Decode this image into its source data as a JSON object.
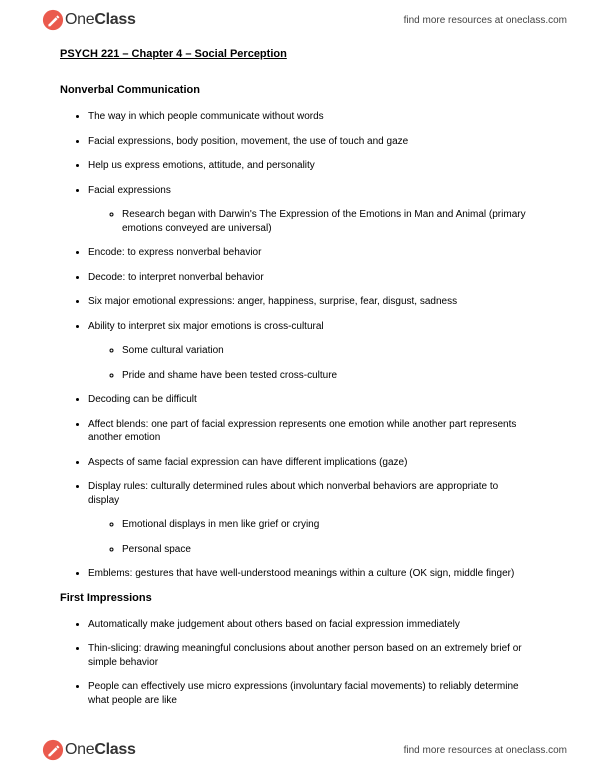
{
  "brand": {
    "name_part1": "One",
    "name_part2": "Class",
    "tagline": "find more resources at oneclass.com",
    "icon_fill": "#d9534f",
    "icon_accent": "#ffffff"
  },
  "doc": {
    "title": "PSYCH 221 – Chapter 4 – Social Perception",
    "sections": [
      {
        "heading": "Nonverbal Communication",
        "items": [
          {
            "text": "The way in which people communicate without words"
          },
          {
            "text": "Facial expressions, body position, movement, the use of touch and gaze"
          },
          {
            "text": "Help us express emotions, attitude, and personality"
          },
          {
            "text": "Facial expressions",
            "sub": [
              "Research began with Darwin's The Expression of the Emotions in Man and Animal (primary emotions conveyed are universal)"
            ]
          },
          {
            "text": "Encode: to express nonverbal behavior"
          },
          {
            "text": "Decode: to interpret nonverbal behavior"
          },
          {
            "text": "Six major emotional expressions: anger, happiness, surprise, fear, disgust, sadness"
          },
          {
            "text": "Ability to interpret six major emotions is cross-cultural",
            "sub": [
              "Some cultural variation",
              "Pride and shame have been tested cross-culture"
            ]
          },
          {
            "text": "Decoding can be difficult"
          },
          {
            "text": "Affect blends: one part of facial expression represents one emotion while another part represents another emotion"
          },
          {
            "text": "Aspects of same facial expression can have different implications (gaze)"
          },
          {
            "text": "Display rules: culturally determined rules about which nonverbal behaviors are appropriate to display",
            "sub": [
              "Emotional displays in men like grief or crying",
              "Personal space"
            ]
          },
          {
            "text": "Emblems: gestures that have well-understood meanings within a culture (OK sign, middle finger)"
          }
        ]
      },
      {
        "heading": "First Impressions",
        "items": [
          {
            "text": "Automatically make judgement about others based on facial expression immediately"
          },
          {
            "text": "Thin-slicing: drawing meaningful conclusions about another person based on an extremely brief or simple behavior"
          },
          {
            "text": "People can effectively use micro expressions (involuntary facial movements) to reliably determine what people are like"
          }
        ]
      }
    ]
  }
}
